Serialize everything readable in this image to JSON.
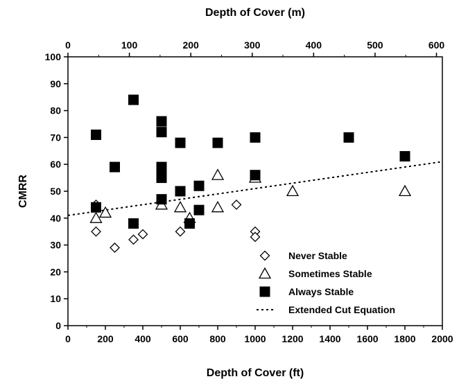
{
  "chart_data": {
    "type": "scatter",
    "title": "",
    "xlabel": "Depth of Cover (ft)",
    "x2label": "Depth of Cover (m)",
    "ylabel": "CMRR",
    "xlim": [
      0,
      2000
    ],
    "ylim": [
      0,
      100
    ],
    "x2lim": [
      0,
      609.6
    ],
    "x_ticks": [
      0,
      200,
      400,
      600,
      800,
      1000,
      1200,
      1400,
      1600,
      1800,
      2000
    ],
    "x2_ticks": [
      0,
      100,
      200,
      300,
      400,
      500,
      600
    ],
    "y_ticks": [
      0,
      10,
      20,
      30,
      40,
      50,
      60,
      70,
      80,
      90,
      100
    ],
    "grid": false,
    "legend_position": "bottom-right",
    "series": [
      {
        "name": "Never Stable",
        "marker": "diamond",
        "points": [
          [
            150,
            45
          ],
          [
            150,
            35
          ],
          [
            250,
            29
          ],
          [
            350,
            32
          ],
          [
            400,
            34
          ],
          [
            600,
            35
          ],
          [
            900,
            45
          ],
          [
            1000,
            35
          ],
          [
            1000,
            33
          ]
        ]
      },
      {
        "name": "Sometimes Stable",
        "marker": "triangle",
        "points": [
          [
            150,
            40
          ],
          [
            200,
            42
          ],
          [
            500,
            45
          ],
          [
            600,
            44
          ],
          [
            650,
            40
          ],
          [
            800,
            56
          ],
          [
            800,
            44
          ],
          [
            1000,
            55
          ],
          [
            1200,
            50
          ],
          [
            1800,
            50
          ]
        ]
      },
      {
        "name": "Always Stable",
        "marker": "square",
        "points": [
          [
            150,
            71
          ],
          [
            150,
            44
          ],
          [
            250,
            59
          ],
          [
            350,
            84
          ],
          [
            350,
            38
          ],
          [
            500,
            76
          ],
          [
            500,
            72
          ],
          [
            500,
            59
          ],
          [
            500,
            57
          ],
          [
            500,
            55
          ],
          [
            500,
            47
          ],
          [
            600,
            68
          ],
          [
            600,
            50
          ],
          [
            650,
            38
          ],
          [
            700,
            52
          ],
          [
            700,
            43
          ],
          [
            800,
            68
          ],
          [
            1000,
            70
          ],
          [
            1000,
            56
          ],
          [
            1500,
            70
          ],
          [
            1800,
            63
          ]
        ]
      },
      {
        "name": "Extended Cut Equation",
        "marker": "dashed-line",
        "points": [
          [
            0,
            41
          ],
          [
            2000,
            61
          ]
        ]
      }
    ]
  }
}
